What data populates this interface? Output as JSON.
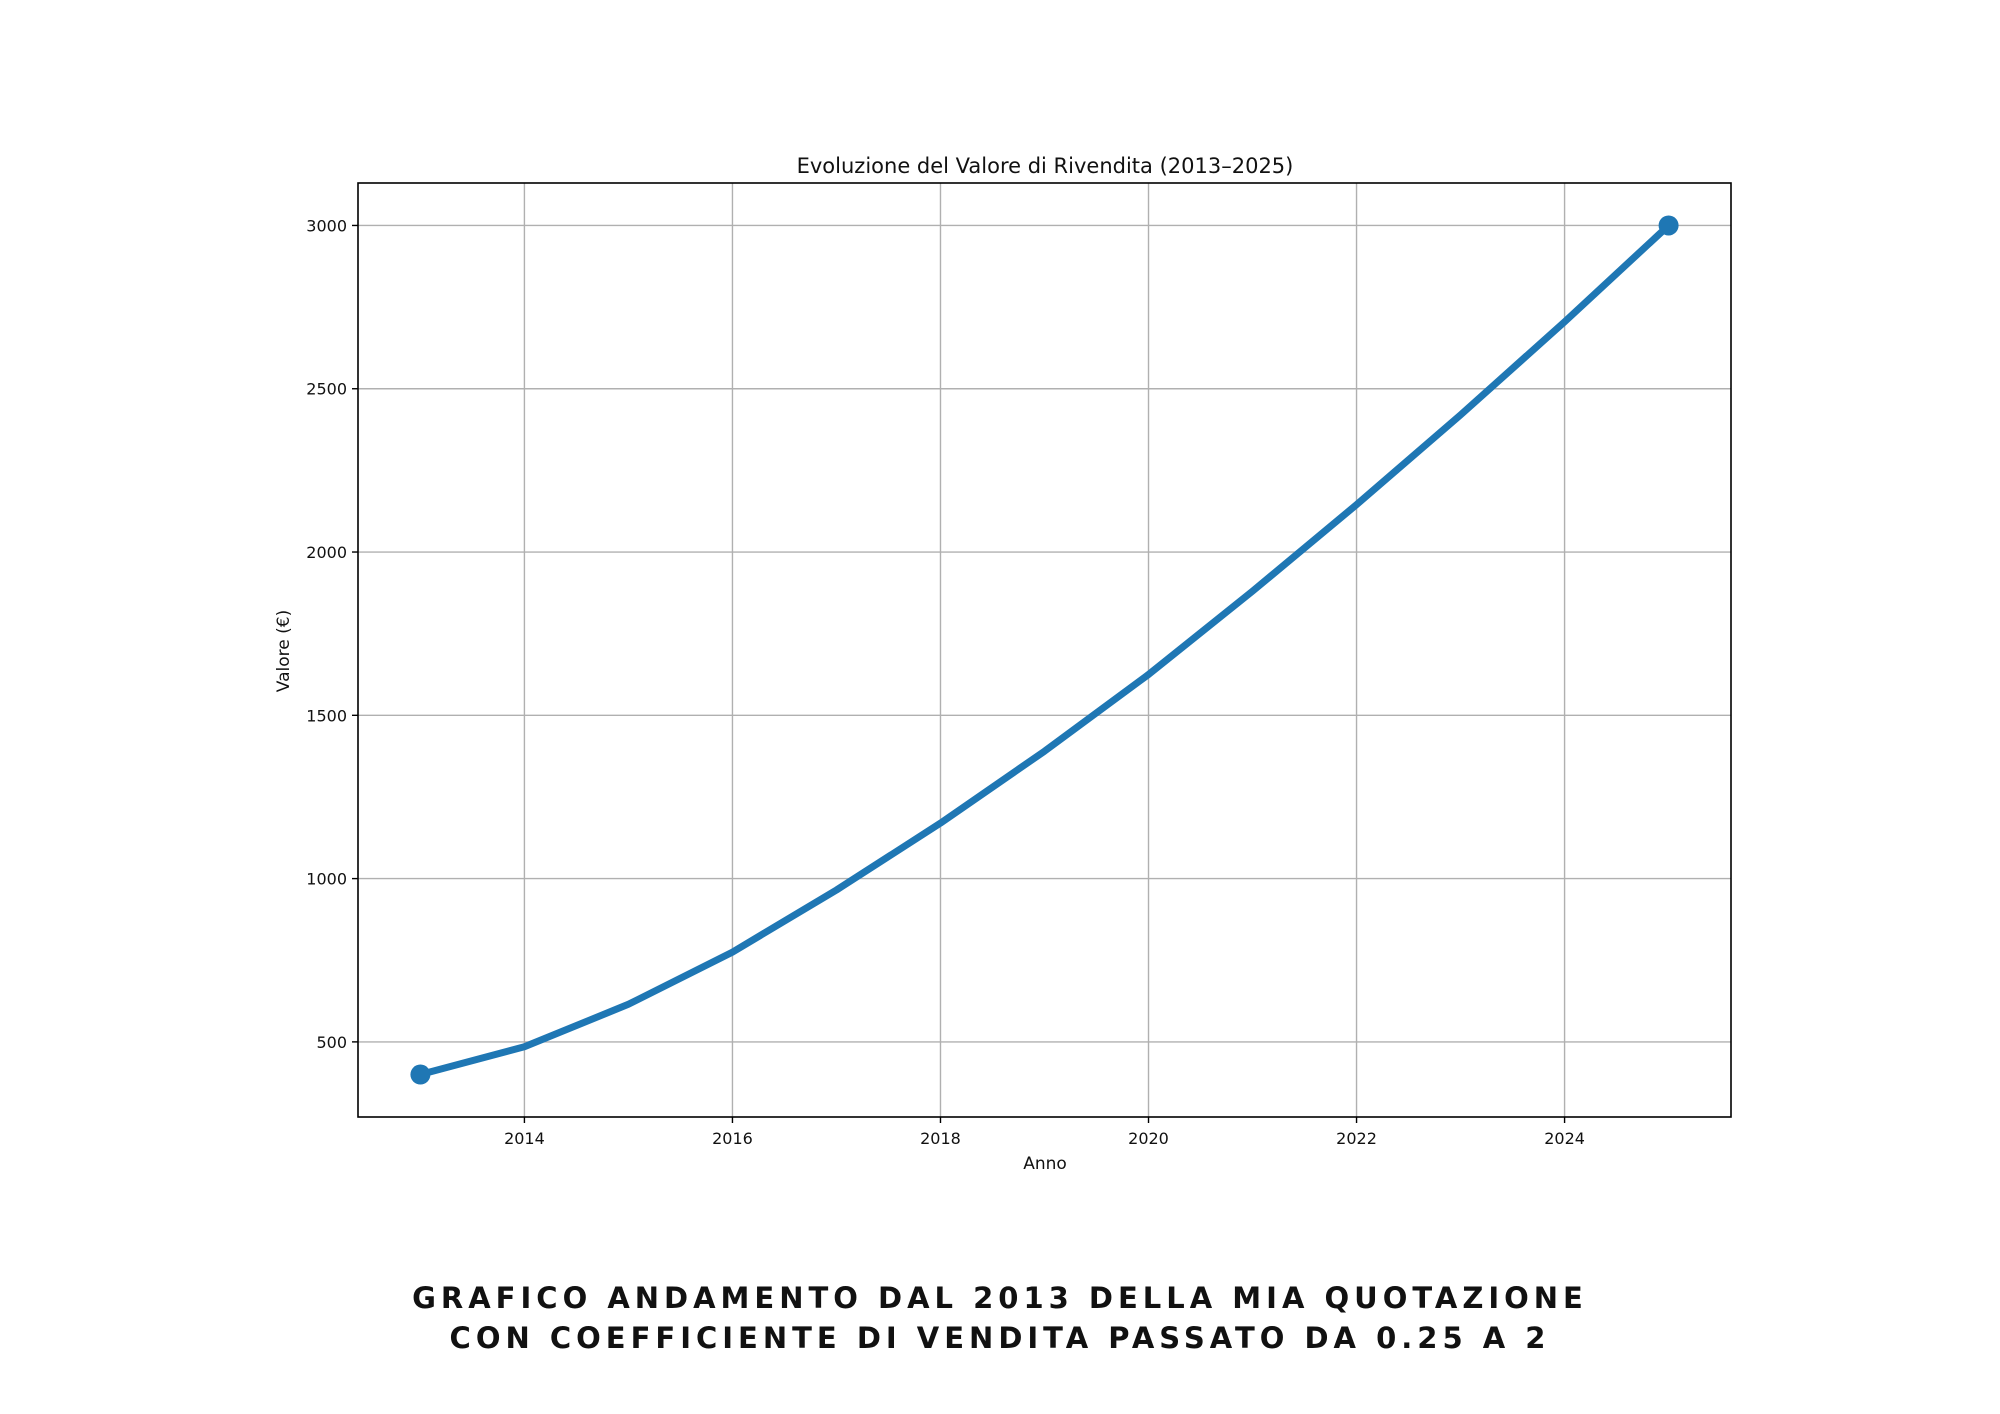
{
  "chart_data": {
    "type": "line",
    "title": "Evoluzione del Valore di Rivendita (2013–2025)",
    "xlabel": "Anno",
    "ylabel": "Valore (€)",
    "xlim": [
      2012.4,
      2025.6
    ],
    "ylim": [
      270,
      3130
    ],
    "x_ticks": [
      "2014",
      "2016",
      "2018",
      "2020",
      "2022",
      "2024"
    ],
    "y_ticks": [
      "500",
      "1000",
      "1500",
      "2000",
      "2500",
      "3000"
    ],
    "grid": true,
    "legend": "none",
    "series": [
      {
        "color": "#1f77b4",
        "x": [
          2013,
          2014,
          2015,
          2016,
          2017,
          2018,
          2019,
          2020,
          2021,
          2022,
          2023,
          2024,
          2025
        ],
        "y": [
          400,
          485,
          615,
          775,
          965,
          1170,
          1390,
          1625,
          1880,
          2145,
          2420,
          2705,
          3000
        ],
        "markers_at": [
          2013,
          2025
        ]
      }
    ]
  },
  "caption": {
    "line1": "GRAFICO ANDAMENTO DAL 2013 DELLA MIA QUOTAZIONE",
    "line2": "CON COEFFICIENTE DI VENDITA PASSATO DA 0.25 A 2"
  }
}
